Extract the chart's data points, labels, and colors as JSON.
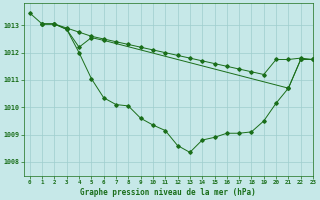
{
  "bg_color": "#c6e8e8",
  "grid_color": "#9ecece",
  "line_color": "#1a6e1a",
  "title": "Graphe pression niveau de la mer (hPa)",
  "xlim": [
    -0.5,
    23
  ],
  "ylim": [
    1007.5,
    1013.8
  ],
  "yticks": [
    1008,
    1009,
    1010,
    1011,
    1012,
    1013
  ],
  "xticks": [
    0,
    1,
    2,
    3,
    4,
    5,
    6,
    7,
    8,
    9,
    10,
    11,
    12,
    13,
    14,
    15,
    16,
    17,
    18,
    19,
    20,
    21,
    22,
    23
  ],
  "line1_x": [
    0,
    1,
    2,
    3,
    4,
    5,
    6,
    7,
    8,
    9,
    10,
    11,
    12,
    13,
    14,
    15,
    16,
    17,
    18,
    19,
    20,
    21,
    22,
    23
  ],
  "line1_y": [
    1013.45,
    1013.05,
    1013.05,
    1012.9,
    1012.75,
    1012.6,
    1012.5,
    1012.4,
    1012.3,
    1012.2,
    1012.1,
    1012.0,
    1011.9,
    1011.8,
    1011.7,
    1011.6,
    1011.5,
    1011.4,
    1011.3,
    1011.2,
    1011.75,
    1011.75,
    1011.8,
    1011.75
  ],
  "line2_x": [
    1,
    2,
    3,
    4,
    5,
    6,
    7,
    8,
    9,
    10,
    11,
    12,
    13,
    14,
    15,
    16,
    17,
    18,
    19,
    20,
    21,
    22,
    23
  ],
  "line2_y": [
    1013.05,
    1013.05,
    1012.85,
    1012.0,
    1011.05,
    1010.35,
    1010.1,
    1010.05,
    1009.6,
    1009.35,
    1009.15,
    1008.6,
    1008.35,
    1008.8,
    1008.9,
    1009.05,
    1009.05,
    1009.1,
    1009.5,
    1010.15,
    1010.7,
    1011.75,
    1011.75
  ],
  "line3_x": [
    1,
    2,
    3,
    4,
    5,
    6,
    21,
    22,
    23
  ],
  "line3_y": [
    1013.05,
    1013.05,
    1012.85,
    1012.2,
    1012.55,
    1012.45,
    1010.7,
    1011.75,
    1011.75
  ]
}
